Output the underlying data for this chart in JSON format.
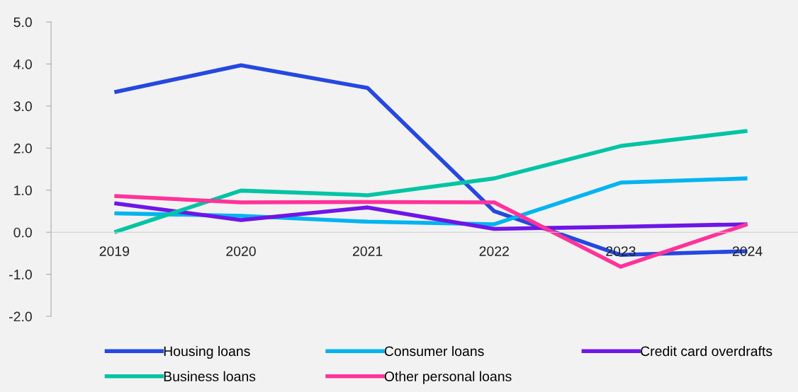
{
  "chart_data": {
    "type": "line",
    "categories": [
      "2019",
      "2020",
      "2021",
      "2022",
      "2023",
      "2024"
    ],
    "series": [
      {
        "name": "Housing loans",
        "color": "#2548e0",
        "values": [
          3.33,
          3.97,
          3.43,
          0.5,
          -0.54,
          -0.45
        ]
      },
      {
        "name": "Consumer loans",
        "color": "#00b4f0",
        "values": [
          0.45,
          0.39,
          0.25,
          0.19,
          1.18,
          1.28
        ]
      },
      {
        "name": "Credit card overdrafts",
        "color": "#6e16e6",
        "values": [
          0.69,
          0.29,
          0.59,
          0.08,
          0.13,
          0.19
        ]
      },
      {
        "name": "Business loans",
        "color": "#00c4a4",
        "values": [
          0.0,
          0.99,
          0.88,
          1.28,
          2.05,
          2.41
        ]
      },
      {
        "name": "Other personal loans",
        "color": "#ff3399",
        "values": [
          0.86,
          0.71,
          0.72,
          0.71,
          -0.82,
          0.19
        ]
      }
    ],
    "ylim": [
      -2.0,
      5.0
    ],
    "yticks": [
      {
        "value": -2,
        "label": "-2.0"
      },
      {
        "value": -1,
        "label": "-1.0"
      },
      {
        "value": 0,
        "label": "0.0"
      },
      {
        "value": 1,
        "label": "1.0"
      },
      {
        "value": 2,
        "label": "2.0"
      },
      {
        "value": 3,
        "label": "3.0"
      },
      {
        "value": 4,
        "label": "4.0"
      },
      {
        "value": 5,
        "label": "5.0"
      }
    ],
    "grid": false,
    "legend": "bottom",
    "marker": "none",
    "line_style": "solid"
  }
}
